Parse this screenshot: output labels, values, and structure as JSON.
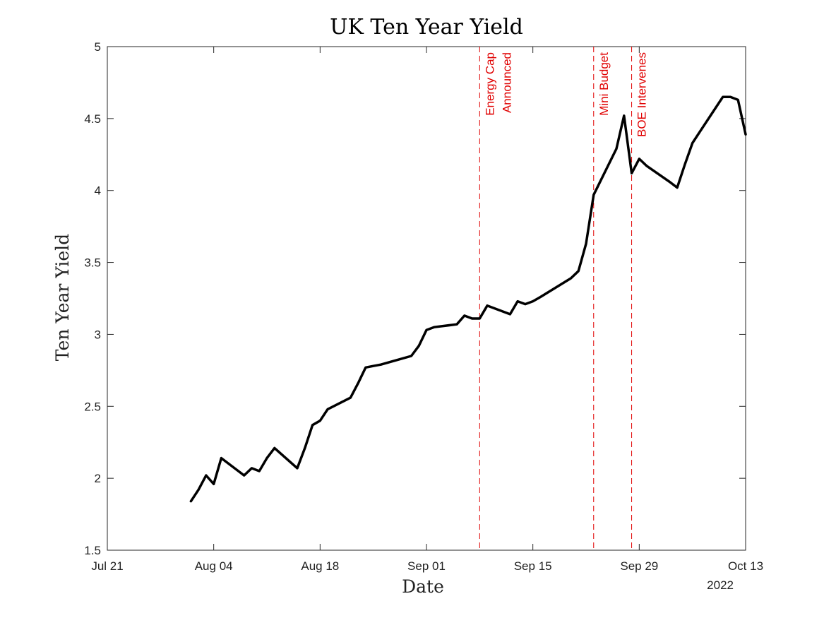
{
  "chart_data": {
    "type": "line",
    "title": "UK Ten Year Yield",
    "xlabel": "Date",
    "ylabel": "Ten Year Yield",
    "year_label": "2022",
    "xlim": [
      "2022-07-21",
      "2022-10-13"
    ],
    "ylim": [
      1.5,
      5
    ],
    "grid": false,
    "x_ticks": [
      {
        "date": "2022-07-21",
        "label": "Jul 21"
      },
      {
        "date": "2022-08-04",
        "label": "Aug 04"
      },
      {
        "date": "2022-08-18",
        "label": "Aug 18"
      },
      {
        "date": "2022-09-01",
        "label": "Sep 01"
      },
      {
        "date": "2022-09-15",
        "label": "Sep 15"
      },
      {
        "date": "2022-09-29",
        "label": "Sep 29"
      },
      {
        "date": "2022-10-13",
        "label": "Oct 13"
      }
    ],
    "y_ticks": [
      {
        "value": 1.5,
        "label": "1.5"
      },
      {
        "value": 2,
        "label": "2"
      },
      {
        "value": 2.5,
        "label": "2.5"
      },
      {
        "value": 3,
        "label": "3"
      },
      {
        "value": 3.5,
        "label": "3.5"
      },
      {
        "value": 4,
        "label": "4"
      },
      {
        "value": 4.5,
        "label": "4.5"
      },
      {
        "value": 5,
        "label": "5"
      }
    ],
    "line_color": "#000000",
    "annotation_color": "#e00000",
    "series": [
      {
        "x": [
          "2022-08-01",
          "2022-08-02",
          "2022-08-03",
          "2022-08-04",
          "2022-08-05",
          "2022-08-08",
          "2022-08-09",
          "2022-08-10",
          "2022-08-11",
          "2022-08-12",
          "2022-08-15",
          "2022-08-16",
          "2022-08-17",
          "2022-08-18",
          "2022-08-19",
          "2022-08-22",
          "2022-08-23",
          "2022-08-24",
          "2022-08-25",
          "2022-08-26",
          "2022-08-30",
          "2022-08-31",
          "2022-09-01",
          "2022-09-02",
          "2022-09-05",
          "2022-09-06",
          "2022-09-07",
          "2022-09-08",
          "2022-09-09",
          "2022-09-12",
          "2022-09-13",
          "2022-09-14",
          "2022-09-15",
          "2022-09-16",
          "2022-09-20",
          "2022-09-21",
          "2022-09-22",
          "2022-09-23",
          "2022-09-26",
          "2022-09-27",
          "2022-09-28",
          "2022-09-29",
          "2022-09-30",
          "2022-10-03",
          "2022-10-04",
          "2022-10-05",
          "2022-10-06",
          "2022-10-07",
          "2022-10-10",
          "2022-10-11",
          "2022-10-12",
          "2022-10-13"
        ],
        "values": [
          1.84,
          1.92,
          2.02,
          1.96,
          2.14,
          2.02,
          2.07,
          2.05,
          2.14,
          2.21,
          2.07,
          2.21,
          2.37,
          2.4,
          2.48,
          2.56,
          2.66,
          2.77,
          2.78,
          2.79,
          2.85,
          2.92,
          3.03,
          3.05,
          3.07,
          3.13,
          3.11,
          3.11,
          3.2,
          3.14,
          3.23,
          3.21,
          3.23,
          3.26,
          3.39,
          3.44,
          3.63,
          3.97,
          4.29,
          4.52,
          4.12,
          4.22,
          4.17,
          4.06,
          4.02,
          4.18,
          4.33,
          4.41,
          4.65,
          4.65,
          4.63,
          4.39
        ]
      }
    ],
    "annotations": [
      {
        "date": "2022-09-08",
        "lines": [
          "Energy Cap",
          "Announced"
        ]
      },
      {
        "date": "2022-09-23",
        "lines": [
          "Mini Budget"
        ]
      },
      {
        "date": "2022-09-28",
        "lines": [
          "BOE Intervenes"
        ]
      }
    ]
  }
}
